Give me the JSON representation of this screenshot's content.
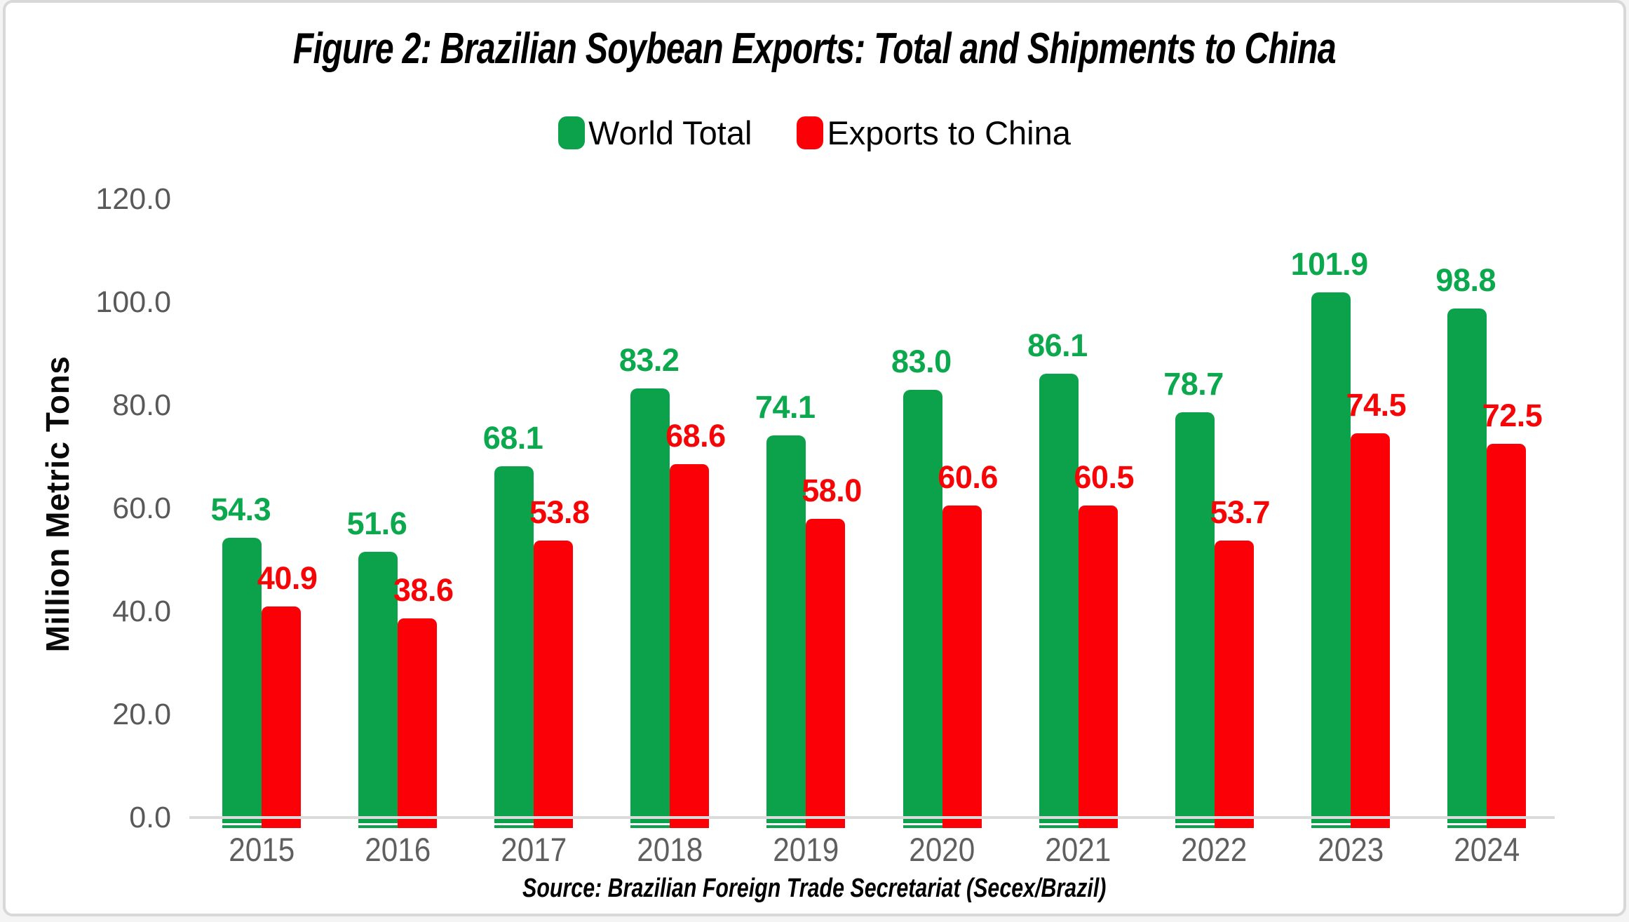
{
  "title": "Figure 2: Brazilian Soybean Exports: Total and Shipments to China",
  "source": "Source: Brazilian Foreign Trade Secretariat (Secex/Brazil)",
  "legend": [
    {
      "label": "World Total",
      "color": "#0CA24B"
    },
    {
      "label": "Exports to China",
      "color": "#FB0007"
    }
  ],
  "y_axis": {
    "title": "Million Metric Tons",
    "ticks": [
      "0.0",
      "20.0",
      "40.0",
      "60.0",
      "80.0",
      "100.0",
      "120.0"
    ],
    "tick_color": "#595959",
    "max": 120
  },
  "x_axis": {
    "tick_color": "#5f5f5f",
    "axis_line_color": "#dbdbdb"
  },
  "colors": {
    "world_total_bar": "#0CA24B",
    "world_total_label": "#0BA84E",
    "china_bar": "#FB0007",
    "china_label": "#F70406",
    "frame_border": "#d8d8d8",
    "background": "#ffffff"
  },
  "chart_data": {
    "type": "bar",
    "title": "Figure 2: Brazilian Soybean Exports: Total and Shipments to China",
    "categories": [
      "2015",
      "2016",
      "2017",
      "2018",
      "2019",
      "2020",
      "2021",
      "2022",
      "2023",
      "2024"
    ],
    "series": [
      {
        "name": "World Total",
        "color": "#0CA24B",
        "values": [
          54.3,
          51.6,
          68.1,
          83.2,
          74.1,
          83.0,
          86.1,
          78.7,
          101.9,
          98.8
        ]
      },
      {
        "name": "Exports to China",
        "color": "#FB0007",
        "values": [
          40.9,
          38.6,
          53.8,
          68.6,
          58.0,
          60.6,
          60.5,
          53.7,
          74.5,
          72.5
        ]
      }
    ],
    "xlabel": "",
    "ylabel": "Million Metric Tons",
    "ylim": [
      0,
      120
    ],
    "ytick_step": 20,
    "grid": false,
    "legend_position": "top",
    "data_labels": true
  }
}
